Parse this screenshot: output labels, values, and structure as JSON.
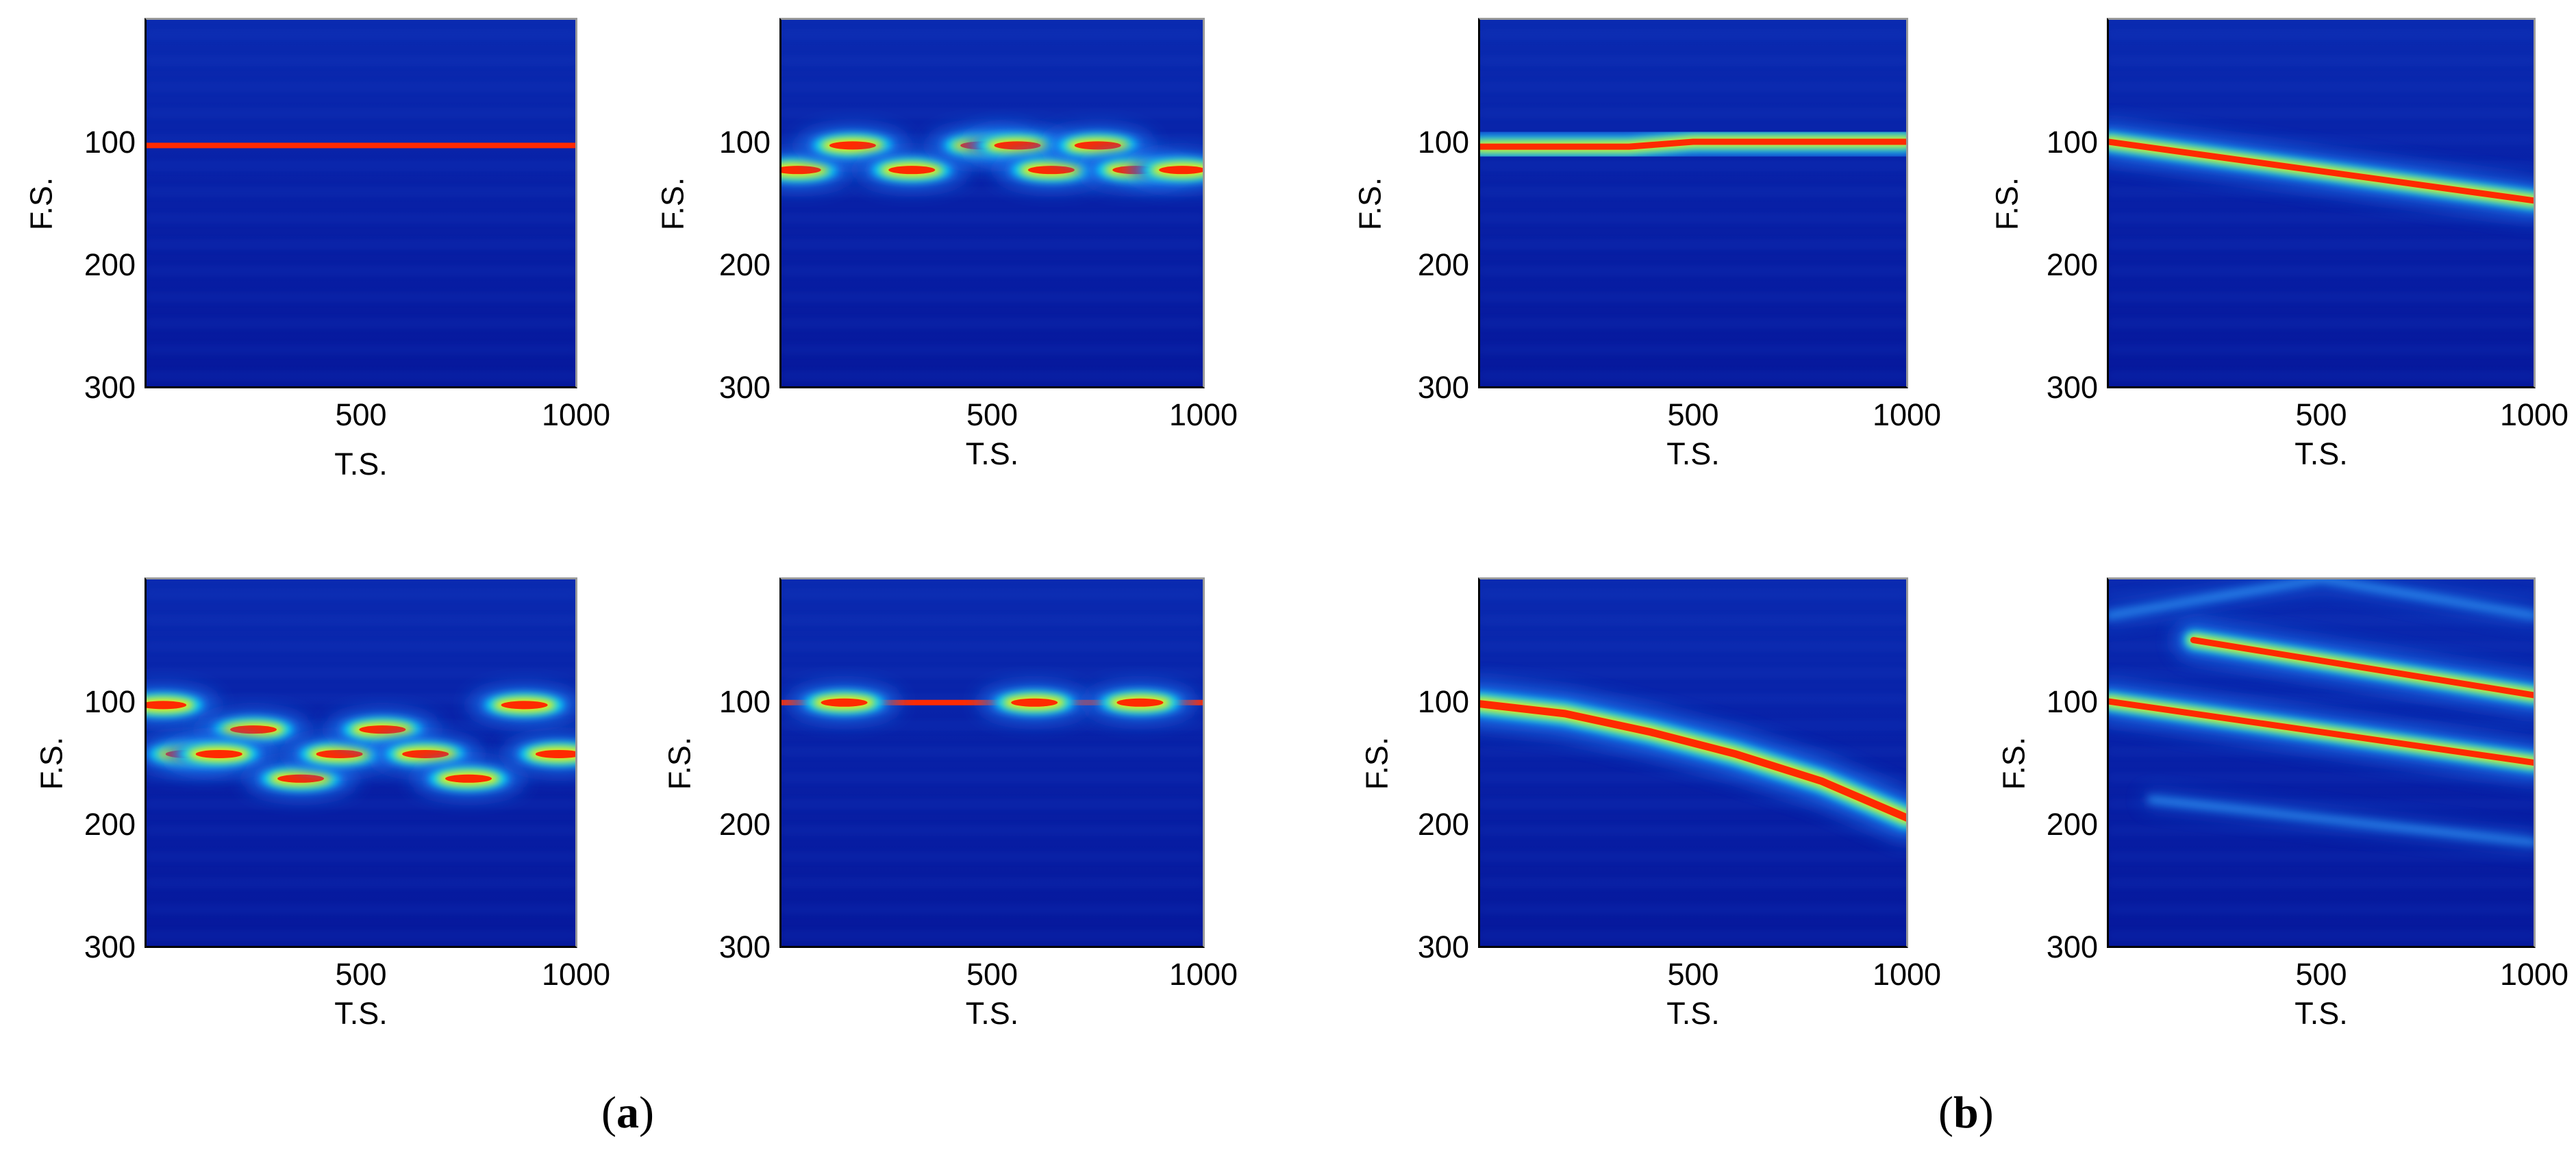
{
  "chart_data": [
    {
      "type": "heatmap",
      "group": "a",
      "xlabel": "T.S.",
      "ylabel": "F.S.",
      "xlim": [
        0,
        1000
      ],
      "ylim": [
        0,
        300
      ],
      "xticks": [
        "500",
        "1000"
      ],
      "yticks": [
        "100",
        "200",
        "300"
      ],
      "ridges": [
        {
          "x": [
            0,
            1000
          ],
          "y": [
            103,
            103
          ],
          "w": 8
        }
      ]
    },
    {
      "type": "heatmap",
      "group": "a",
      "xlabel": "T.S.",
      "ylabel": "F.S.",
      "xlim": [
        0,
        1000
      ],
      "ylim": [
        0,
        300
      ],
      "xticks": [
        "500",
        "1000"
      ],
      "yticks": [
        "100",
        "200",
        "300"
      ],
      "blobs": [
        {
          "x": 40,
          "y": 123
        },
        {
          "x": 170,
          "y": 103
        },
        {
          "x": 310,
          "y": 123
        },
        {
          "x": 480,
          "y": 103
        },
        {
          "x": 560,
          "y": 103
        },
        {
          "x": 640,
          "y": 123
        },
        {
          "x": 750,
          "y": 103
        },
        {
          "x": 840,
          "y": 123
        },
        {
          "x": 950,
          "y": 123
        }
      ]
    },
    {
      "type": "heatmap",
      "group": "b",
      "xlabel": "T.S.",
      "ylabel": "F.S.",
      "xlim": [
        0,
        1000
      ],
      "ylim": [
        0,
        300
      ],
      "xticks": [
        "500",
        "1000"
      ],
      "yticks": [
        "100",
        "200",
        "300"
      ],
      "ridges": [
        {
          "x": [
            0,
            350,
            500,
            1000
          ],
          "y": [
            104,
            104,
            100,
            100
          ],
          "w": 9
        }
      ]
    },
    {
      "type": "heatmap",
      "group": "b",
      "xlabel": "T.S.",
      "ylabel": "F.S.",
      "xlim": [
        0,
        1000
      ],
      "ylim": [
        0,
        300
      ],
      "xticks": [
        "500",
        "1000"
      ],
      "yticks": [
        "100",
        "200",
        "300"
      ],
      "ridges": [
        {
          "x": [
            0,
            1000
          ],
          "y": [
            100,
            148
          ],
          "w": 9
        }
      ]
    },
    {
      "type": "heatmap",
      "group": "a",
      "xlabel": "T.S.",
      "ylabel": "F.S.",
      "xlim": [
        0,
        1000
      ],
      "ylim": [
        0,
        300
      ],
      "xticks": [
        "500",
        "1000"
      ],
      "yticks": [
        "100",
        "200",
        "300"
      ],
      "blobs": [
        {
          "x": 40,
          "y": 103
        },
        {
          "x": 100,
          "y": 143
        },
        {
          "x": 250,
          "y": 123
        },
        {
          "x": 170,
          "y": 143
        },
        {
          "x": 360,
          "y": 163
        },
        {
          "x": 450,
          "y": 143
        },
        {
          "x": 550,
          "y": 123
        },
        {
          "x": 650,
          "y": 143
        },
        {
          "x": 750,
          "y": 163
        },
        {
          "x": 880,
          "y": 103
        },
        {
          "x": 960,
          "y": 143
        }
      ]
    },
    {
      "type": "heatmap",
      "group": "a",
      "xlabel": "T.S.",
      "ylabel": "F.S.",
      "xlim": [
        0,
        1000
      ],
      "ylim": [
        0,
        300
      ],
      "xticks": [
        "500",
        "1000"
      ],
      "yticks": [
        "100",
        "200",
        "300"
      ],
      "ridges": [
        {
          "x": [
            0,
            1000
          ],
          "y": [
            101,
            101
          ],
          "w": 8
        }
      ],
      "blobs": [
        {
          "x": 150,
          "y": 101
        },
        {
          "x": 600,
          "y": 101
        },
        {
          "x": 850,
          "y": 101
        }
      ]
    },
    {
      "type": "heatmap",
      "group": "b",
      "xlabel": "T.S.",
      "ylabel": "F.S.",
      "xlim": [
        0,
        1000
      ],
      "ylim": [
        0,
        300
      ],
      "xticks": [
        "500",
        "1000"
      ],
      "yticks": [
        "100",
        "200",
        "300"
      ],
      "ridges": [
        {
          "x": [
            0,
            200,
            400,
            600,
            800,
            1000
          ],
          "y": [
            102,
            110,
            125,
            143,
            165,
            195
          ],
          "w": 11
        }
      ]
    },
    {
      "type": "heatmap",
      "group": "b",
      "xlabel": "T.S.",
      "ylabel": "F.S.",
      "xlim": [
        0,
        1000
      ],
      "ylim": [
        0,
        300
      ],
      "xticks": [
        "500",
        "1000"
      ],
      "yticks": [
        "100",
        "200",
        "300"
      ],
      "ridges": [
        {
          "x": [
            0,
            1000
          ],
          "y": [
            100,
            150
          ],
          "w": 9
        },
        {
          "x": [
            200,
            1000
          ],
          "y": [
            50,
            95
          ],
          "w": 9
        },
        {
          "x": [
            100,
            1000
          ],
          "y": [
            180,
            215
          ],
          "w": 5,
          "faint": true
        },
        {
          "x": [
            0,
            500,
            1000
          ],
          "y": [
            30,
            0,
            30
          ],
          "w": 5,
          "faint": true
        }
      ]
    }
  ],
  "labels": {
    "a": "(a)",
    "b": "(b)"
  }
}
